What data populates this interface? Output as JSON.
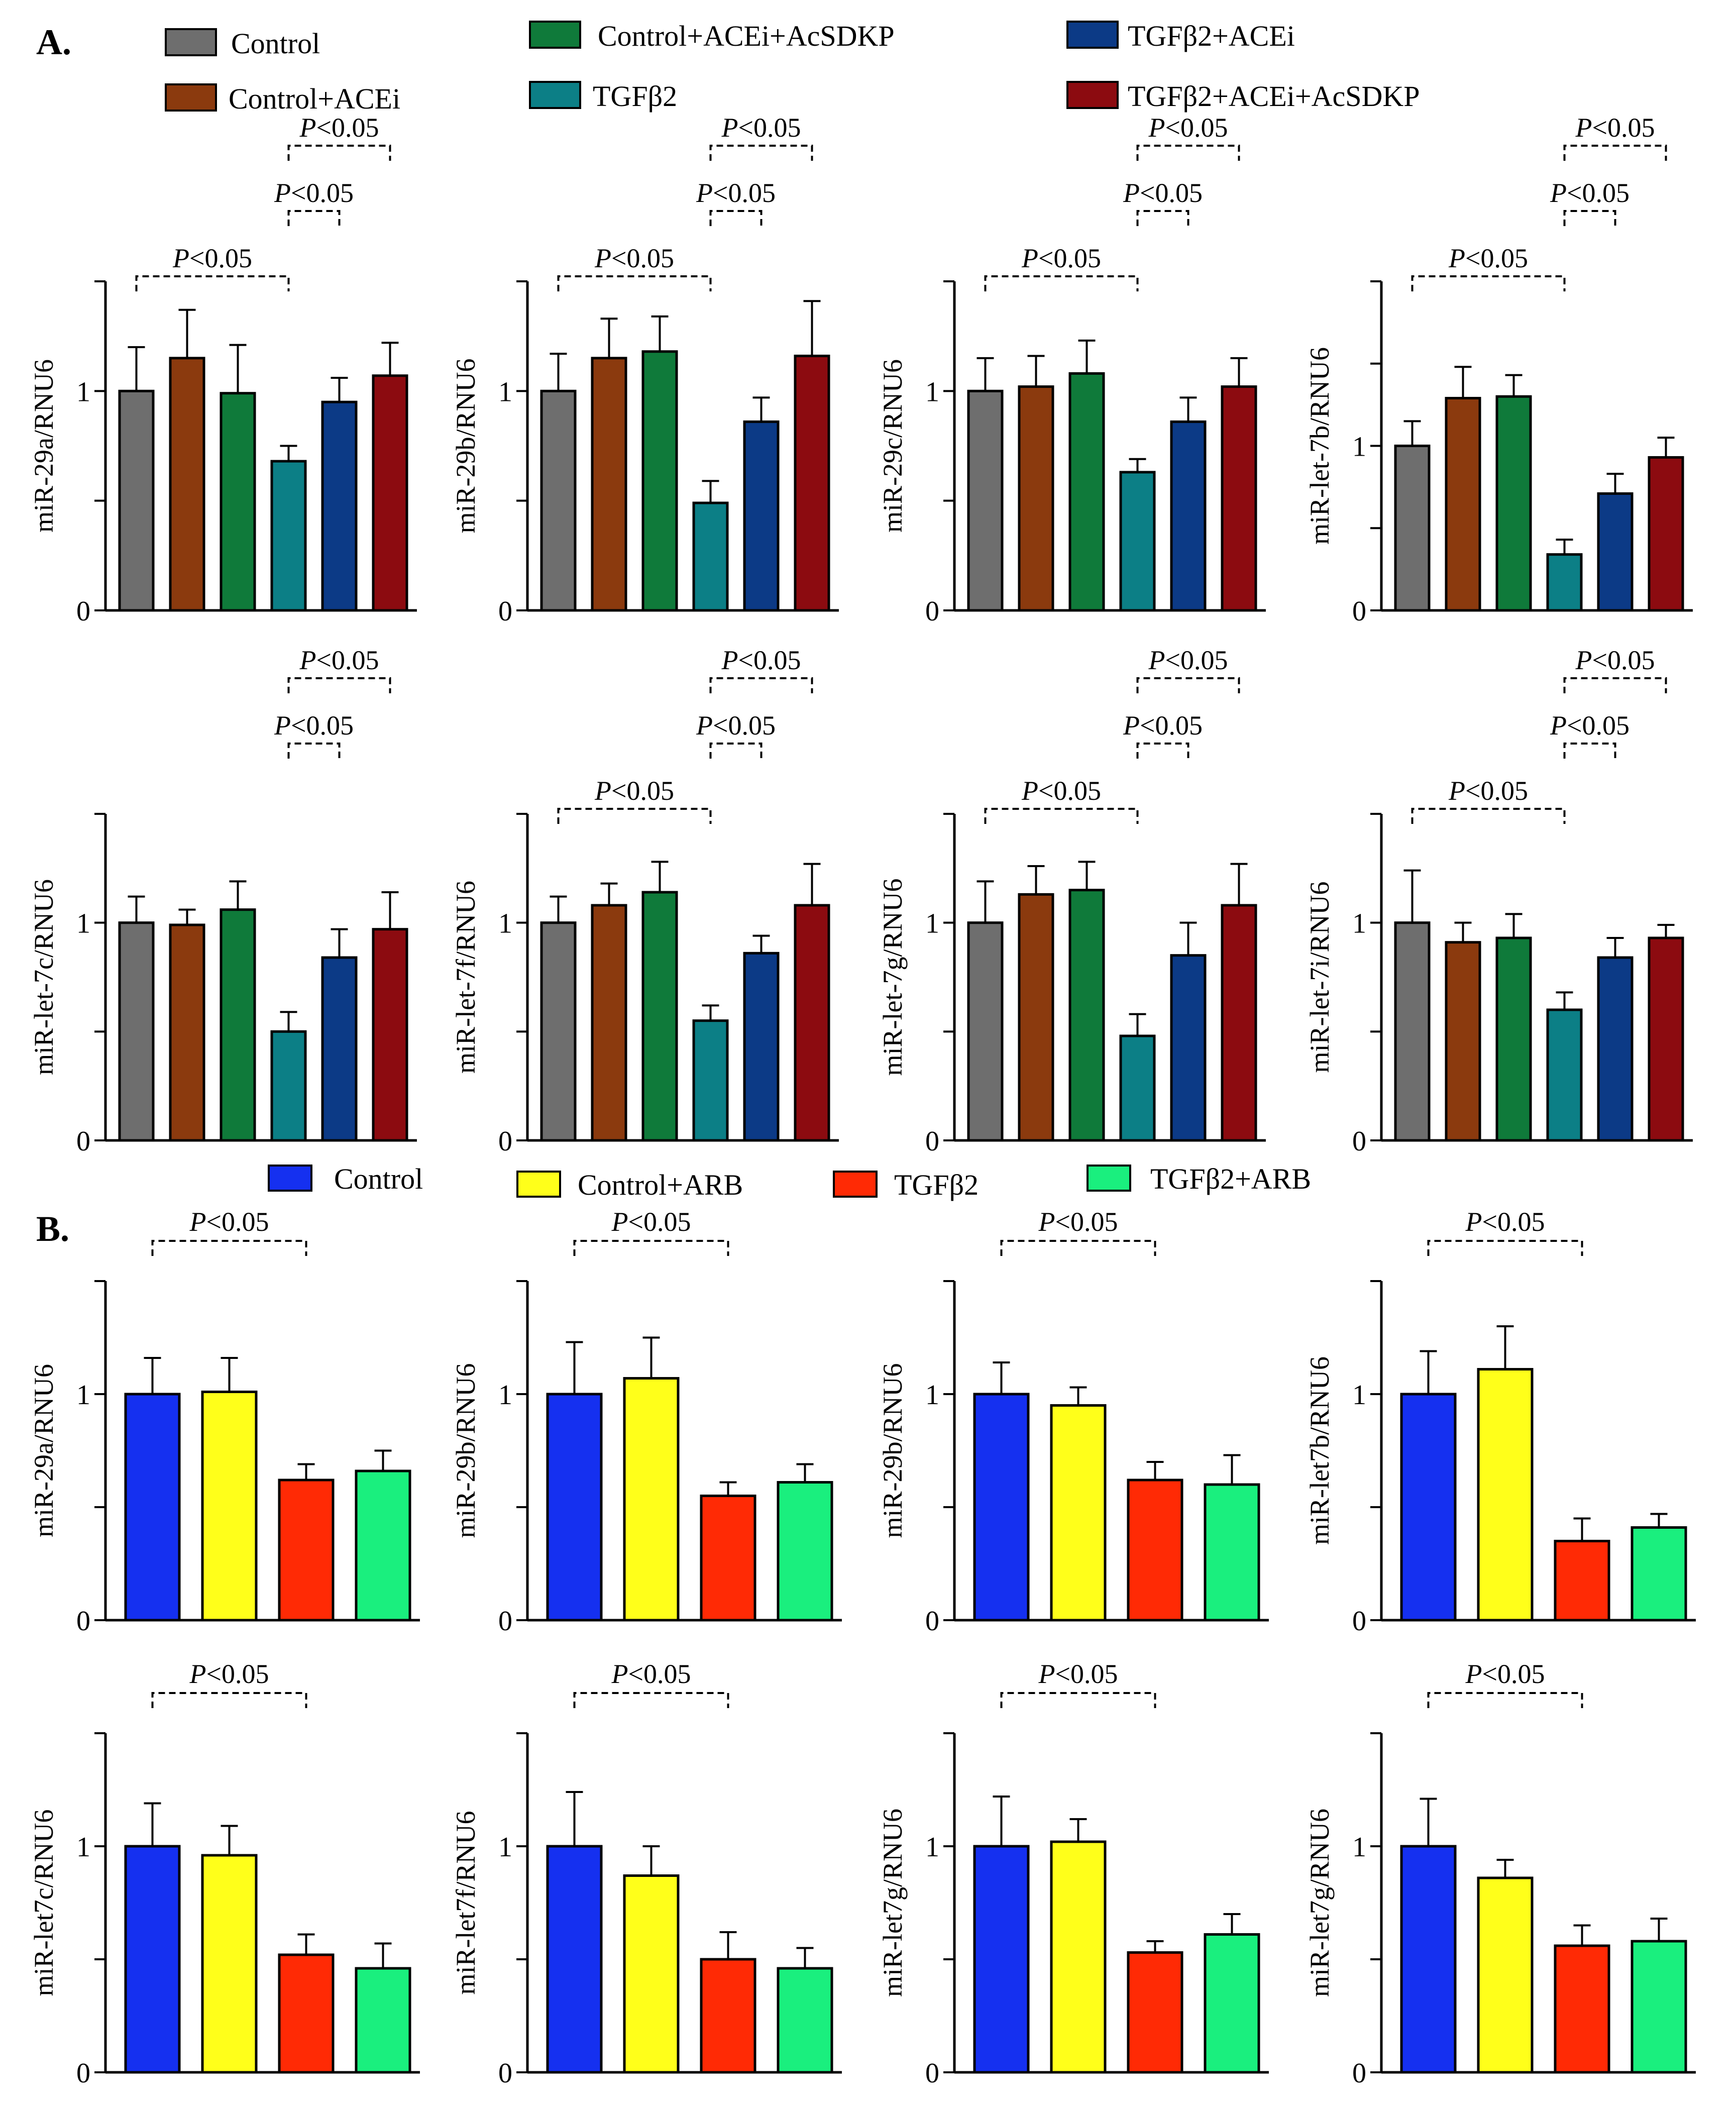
{
  "panel_labels": {
    "a": "A.",
    "b": "B."
  },
  "p_label": "P<0.05",
  "legend_a": [
    {
      "name": "Control",
      "color": "#6e6e6e"
    },
    {
      "name": "Control+ACEi",
      "color": "#8b3a0e"
    },
    {
      "name": "Control+ACEi+AcSDKP",
      "color": "#0f7a3a"
    },
    {
      "name": "TGFβ2",
      "color": "#0c7f86"
    },
    {
      "name": "TGFβ2+ACEi",
      "color": "#0c3a86"
    },
    {
      "name": "TGFβ2+ACEi+AcSDKP",
      "color": "#8c0b10"
    }
  ],
  "legend_b": [
    {
      "name": "Control",
      "color": "#1530f0"
    },
    {
      "name": "Control+ARB",
      "color": "#ffff1a"
    },
    {
      "name": "TGFβ2",
      "color": "#ff2a05"
    },
    {
      "name": "TGFβ2+ARB",
      "color": "#1aef7e"
    }
  ],
  "chart_data": [
    {
      "panel": "A",
      "type": "bar",
      "ylabel": "miR-29a/RNU6",
      "ylim": [
        0,
        1.5
      ],
      "yticks": [
        "0",
        "1"
      ],
      "categories": [
        "Control",
        "Control+ACEi",
        "Control+ACEi+AcSDKP",
        "TGFβ2",
        "TGFβ2+ACEi",
        "TGFβ2+ACEi+AcSDKP"
      ],
      "values": [
        1.0,
        1.15,
        0.99,
        0.68,
        0.95,
        1.07
      ],
      "errors": [
        0.2,
        0.22,
        0.22,
        0.07,
        0.11,
        0.15
      ],
      "comparisons": [
        {
          "from": 0,
          "to": 3,
          "label": "P<0.05"
        },
        {
          "from": 3,
          "to": 4,
          "label": "P<0.05"
        },
        {
          "from": 3,
          "to": 5,
          "label": "P<0.05"
        }
      ]
    },
    {
      "panel": "A",
      "type": "bar",
      "ylabel": "miR-29b/RNU6",
      "ylim": [
        0,
        1.5
      ],
      "yticks": [
        "0",
        "1"
      ],
      "categories": [
        "Control",
        "Control+ACEi",
        "Control+ACEi+AcSDKP",
        "TGFβ2",
        "TGFβ2+ACEi",
        "TGFβ2+ACEi+AcSDKP"
      ],
      "values": [
        1.0,
        1.15,
        1.18,
        0.49,
        0.86,
        1.16
      ],
      "errors": [
        0.17,
        0.18,
        0.16,
        0.1,
        0.11,
        0.25
      ],
      "comparisons": [
        {
          "from": 0,
          "to": 3,
          "label": "P<0.05"
        },
        {
          "from": 3,
          "to": 4,
          "label": "P<0.05"
        },
        {
          "from": 3,
          "to": 5,
          "label": "P<0.05"
        }
      ]
    },
    {
      "panel": "A",
      "type": "bar",
      "ylabel": "miR-29c/RNU6",
      "ylim": [
        0,
        1.5
      ],
      "yticks": [
        "0",
        "1"
      ],
      "categories": [
        "Control",
        "Control+ACEi",
        "Control+ACEi+AcSDKP",
        "TGFβ2",
        "TGFβ2+ACEi",
        "TGFβ2+ACEi+AcSDKP"
      ],
      "values": [
        1.0,
        1.02,
        1.08,
        0.63,
        0.86,
        1.02
      ],
      "errors": [
        0.15,
        0.14,
        0.15,
        0.06,
        0.11,
        0.13
      ],
      "comparisons": [
        {
          "from": 0,
          "to": 3,
          "label": "P<0.05"
        },
        {
          "from": 3,
          "to": 4,
          "label": "P<0.05"
        },
        {
          "from": 3,
          "to": 5,
          "label": "P<0.05"
        }
      ]
    },
    {
      "panel": "A",
      "type": "bar",
      "ylabel": "miR-let-7b/RNU6",
      "ylim": [
        0,
        2.0
      ],
      "yticks": [
        "0",
        "1"
      ],
      "categories": [
        "Control",
        "Control+ACEi",
        "Control+ACEi+AcSDKP",
        "TGFβ2",
        "TGFβ2+ACEi",
        "TGFβ2+ACEi+AcSDKP"
      ],
      "values": [
        1.0,
        1.29,
        1.3,
        0.34,
        0.71,
        0.93
      ],
      "errors": [
        0.15,
        0.19,
        0.13,
        0.09,
        0.12,
        0.12
      ],
      "comparisons": [
        {
          "from": 0,
          "to": 3,
          "label": "P<0.05"
        },
        {
          "from": 3,
          "to": 4,
          "label": "P<0.05"
        },
        {
          "from": 3,
          "to": 5,
          "label": "P<0.05"
        }
      ]
    },
    {
      "panel": "A",
      "type": "bar",
      "ylabel": "miR-let-7c/RNU6",
      "ylim": [
        0,
        1.5
      ],
      "yticks": [
        "0",
        "1"
      ],
      "categories": [
        "Control",
        "Control+ACEi",
        "Control+ACEi+AcSDKP",
        "TGFβ2",
        "TGFβ2+ACEi",
        "TGFβ2+ACEi+AcSDKP"
      ],
      "values": [
        1.0,
        0.99,
        1.06,
        0.5,
        0.84,
        0.97
      ],
      "errors": [
        0.12,
        0.07,
        0.13,
        0.09,
        0.13,
        0.17
      ],
      "comparisons": [
        {
          "from": 3,
          "to": 4,
          "label": "P<0.05"
        },
        {
          "from": 3,
          "to": 5,
          "label": "P<0.05"
        }
      ]
    },
    {
      "panel": "A",
      "type": "bar",
      "ylabel": "miR-let-7f/RNU6",
      "ylim": [
        0,
        1.5
      ],
      "yticks": [
        "0",
        "1"
      ],
      "categories": [
        "Control",
        "Control+ACEi",
        "Control+ACEi+AcSDKP",
        "TGFβ2",
        "TGFβ2+ACEi",
        "TGFβ2+ACEi+AcSDKP"
      ],
      "values": [
        1.0,
        1.08,
        1.14,
        0.55,
        0.86,
        1.08
      ],
      "errors": [
        0.12,
        0.1,
        0.14,
        0.07,
        0.08,
        0.19
      ],
      "comparisons": [
        {
          "from": 0,
          "to": 3,
          "label": "P<0.05"
        },
        {
          "from": 3,
          "to": 4,
          "label": "P<0.05"
        },
        {
          "from": 3,
          "to": 5,
          "label": "P<0.05"
        }
      ]
    },
    {
      "panel": "A",
      "type": "bar",
      "ylabel": "miR-let-7g/RNU6",
      "ylim": [
        0,
        1.5
      ],
      "yticks": [
        "0",
        "1"
      ],
      "categories": [
        "Control",
        "Control+ACEi",
        "Control+ACEi+AcSDKP",
        "TGFβ2",
        "TGFβ2+ACEi",
        "TGFβ2+ACEi+AcSDKP"
      ],
      "values": [
        1.0,
        1.13,
        1.15,
        0.48,
        0.85,
        1.08
      ],
      "errors": [
        0.19,
        0.13,
        0.13,
        0.1,
        0.15,
        0.19
      ],
      "comparisons": [
        {
          "from": 0,
          "to": 3,
          "label": "P<0.05"
        },
        {
          "from": 3,
          "to": 4,
          "label": "P<0.05"
        },
        {
          "from": 3,
          "to": 5,
          "label": "P<0.05"
        }
      ]
    },
    {
      "panel": "A",
      "type": "bar",
      "ylabel": "miR-let-7i/RNU6",
      "ylim": [
        0,
        1.5
      ],
      "yticks": [
        "0",
        "1"
      ],
      "categories": [
        "Control",
        "Control+ACEi",
        "Control+ACEi+AcSDKP",
        "TGFβ2",
        "TGFβ2+ACEi",
        "TGFβ2+ACEi+AcSDKP"
      ],
      "values": [
        1.0,
        0.91,
        0.93,
        0.6,
        0.84,
        0.93
      ],
      "errors": [
        0.24,
        0.09,
        0.11,
        0.08,
        0.09,
        0.06
      ],
      "comparisons": [
        {
          "from": 0,
          "to": 3,
          "label": "P<0.05"
        },
        {
          "from": 3,
          "to": 4,
          "label": "P<0.05"
        },
        {
          "from": 3,
          "to": 5,
          "label": "P<0.05"
        }
      ]
    },
    {
      "panel": "B",
      "type": "bar",
      "ylabel": "miR-29a/RNU6",
      "ylim": [
        0,
        1.5
      ],
      "yticks": [
        "0",
        "1"
      ],
      "categories": [
        "Control",
        "Control+ARB",
        "TGFβ2",
        "TGFβ2+ARB"
      ],
      "values": [
        1.0,
        1.01,
        0.62,
        0.66
      ],
      "errors": [
        0.16,
        0.15,
        0.07,
        0.09
      ],
      "comparisons": [
        {
          "from": 0,
          "to": 2,
          "label": "P<0.05"
        }
      ]
    },
    {
      "panel": "B",
      "type": "bar",
      "ylabel": "miR-29b/RNU6",
      "ylim": [
        0,
        1.5
      ],
      "yticks": [
        "0",
        "1"
      ],
      "categories": [
        "Control",
        "Control+ARB",
        "TGFβ2",
        "TGFβ2+ARB"
      ],
      "values": [
        1.0,
        1.07,
        0.55,
        0.61
      ],
      "errors": [
        0.23,
        0.18,
        0.06,
        0.08
      ],
      "comparisons": [
        {
          "from": 0,
          "to": 2,
          "label": "P<0.05"
        }
      ]
    },
    {
      "panel": "B",
      "type": "bar",
      "ylabel": "miR-29b/RNU6",
      "ylim": [
        0,
        1.5
      ],
      "yticks": [
        "0",
        "1"
      ],
      "categories": [
        "Control",
        "Control+ARB",
        "TGFβ2",
        "TGFβ2+ARB"
      ],
      "values": [
        1.0,
        0.95,
        0.62,
        0.6
      ],
      "errors": [
        0.14,
        0.08,
        0.08,
        0.13
      ],
      "comparisons": [
        {
          "from": 0,
          "to": 2,
          "label": "P<0.05"
        }
      ]
    },
    {
      "panel": "B",
      "type": "bar",
      "ylabel": "miR-let7b/RNU6",
      "ylim": [
        0,
        1.5
      ],
      "yticks": [
        "0",
        "1"
      ],
      "categories": [
        "Control",
        "Control+ARB",
        "TGFβ2",
        "TGFβ2+ARB"
      ],
      "values": [
        1.0,
        1.11,
        0.35,
        0.41
      ],
      "errors": [
        0.19,
        0.19,
        0.1,
        0.06
      ],
      "comparisons": [
        {
          "from": 0,
          "to": 2,
          "label": "P<0.05"
        }
      ]
    },
    {
      "panel": "B",
      "type": "bar",
      "ylabel": "miR-let7c/RNU6",
      "ylim": [
        0,
        1.5
      ],
      "yticks": [
        "0",
        "1"
      ],
      "categories": [
        "Control",
        "Control+ARB",
        "TGFβ2",
        "TGFβ2+ARB"
      ],
      "values": [
        1.0,
        0.96,
        0.52,
        0.46
      ],
      "errors": [
        0.19,
        0.13,
        0.09,
        0.11
      ],
      "comparisons": [
        {
          "from": 0,
          "to": 2,
          "label": "P<0.05"
        }
      ]
    },
    {
      "panel": "B",
      "type": "bar",
      "ylabel": "miR-let7f/RNU6",
      "ylim": [
        0,
        1.5
      ],
      "yticks": [
        "0",
        "1"
      ],
      "categories": [
        "Control",
        "Control+ARB",
        "TGFβ2",
        "TGFβ2+ARB"
      ],
      "values": [
        1.0,
        0.87,
        0.5,
        0.46
      ],
      "errors": [
        0.24,
        0.13,
        0.12,
        0.09
      ],
      "comparisons": [
        {
          "from": 0,
          "to": 2,
          "label": "P<0.05"
        }
      ]
    },
    {
      "panel": "B",
      "type": "bar",
      "ylabel": "miR-let7g/RNU6",
      "ylim": [
        0,
        1.5
      ],
      "yticks": [
        "0",
        "1"
      ],
      "categories": [
        "Control",
        "Control+ARB",
        "TGFβ2",
        "TGFβ2+ARB"
      ],
      "values": [
        1.0,
        1.02,
        0.53,
        0.61
      ],
      "errors": [
        0.22,
        0.1,
        0.05,
        0.09
      ],
      "comparisons": [
        {
          "from": 0,
          "to": 2,
          "label": "P<0.05"
        }
      ]
    },
    {
      "panel": "B",
      "type": "bar",
      "ylabel": "miR-let7g/RNU6",
      "ylim": [
        0,
        1.5
      ],
      "yticks": [
        "0",
        "1"
      ],
      "categories": [
        "Control",
        "Control+ARB",
        "TGFβ2",
        "TGFβ2+ARB"
      ],
      "values": [
        1.0,
        0.86,
        0.56,
        0.58
      ],
      "errors": [
        0.21,
        0.08,
        0.09,
        0.1
      ],
      "comparisons": [
        {
          "from": 0,
          "to": 2,
          "label": "P<0.05"
        }
      ]
    }
  ]
}
